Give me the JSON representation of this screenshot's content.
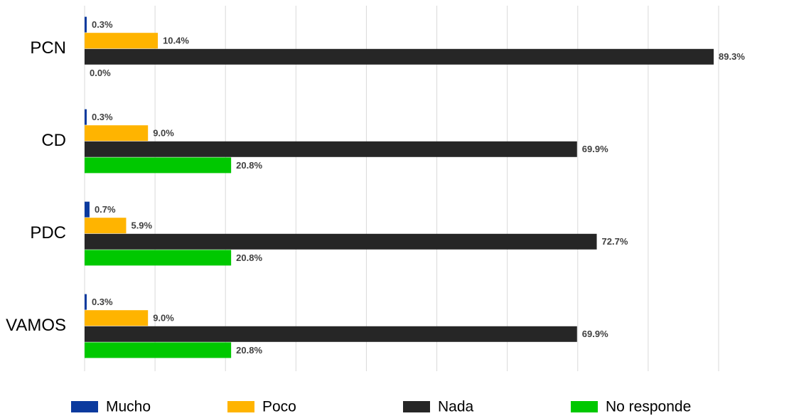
{
  "chart_data": {
    "type": "hbar",
    "categories": [
      "PCN",
      "CD",
      "PDC",
      "VAMOS"
    ],
    "series": [
      {
        "name": "Mucho",
        "color": "#0b3a9e",
        "values": [
          0.3,
          0.3,
          0.7,
          0.3
        ],
        "value_labels": [
          "0.3%",
          "0.3%",
          "0.7%",
          "0.3%"
        ]
      },
      {
        "name": "Poco",
        "color": "#ffb400",
        "values": [
          10.4,
          9.0,
          5.9,
          9.0
        ],
        "value_labels": [
          "10.4%",
          "9.0%",
          "5.9%",
          "9.0%"
        ]
      },
      {
        "name": "Nada",
        "color": "#262626",
        "values": [
          89.3,
          69.9,
          72.7,
          69.9
        ],
        "value_labels": [
          "89.3%",
          "69.9%",
          "72.7%",
          "69.9%"
        ]
      },
      {
        "name": "No responde",
        "color": "#00c800",
        "values": [
          0.0,
          20.8,
          20.8,
          20.8
        ],
        "value_labels": [
          "0.0%",
          "20.8%",
          "20.8%",
          "20.8%"
        ]
      }
    ],
    "xlim": [
      0,
      90
    ],
    "xticks": [
      0,
      10,
      20,
      30,
      40,
      50,
      60,
      70,
      80,
      90
    ],
    "grid": true,
    "legend": "bottom"
  }
}
